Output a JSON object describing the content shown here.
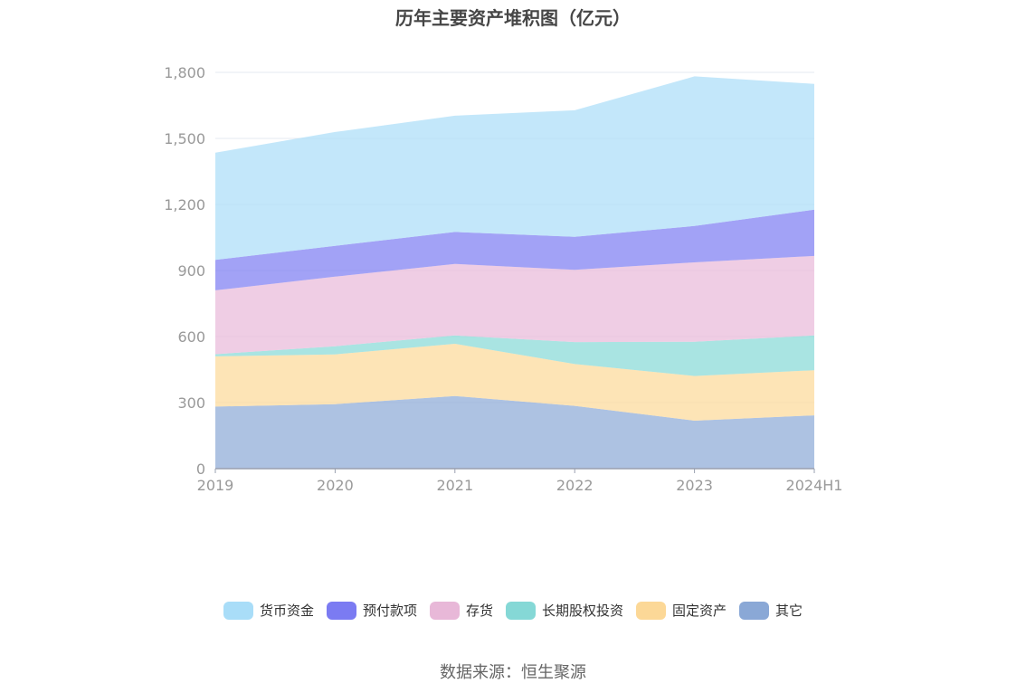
{
  "chart_data": {
    "type": "area",
    "stacked": true,
    "title": "历年主要资产堆积图（亿元）",
    "categories": [
      "2019",
      "2020",
      "2021",
      "2022",
      "2023",
      "2024H1"
    ],
    "y_ticks": [
      "0",
      "300",
      "600",
      "900",
      "1,200",
      "1,500",
      "1,800"
    ],
    "ylim": [
      0,
      1800
    ],
    "grid": true,
    "legend_position": "bottom",
    "series": [
      {
        "name": "其它",
        "color": "#8aa8d6",
        "values": [
          282,
          293,
          330,
          285,
          218,
          242
        ]
      },
      {
        "name": "固定资产",
        "color": "#fcd897",
        "values": [
          228,
          226,
          237,
          190,
          203,
          205
        ]
      },
      {
        "name": "长期股权投资",
        "color": "#85d8d6",
        "values": [
          10,
          37,
          38,
          100,
          155,
          158
        ]
      },
      {
        "name": "存货",
        "color": "#e8b8d8",
        "values": [
          290,
          316,
          325,
          328,
          361,
          361
        ]
      },
      {
        "name": "预付款项",
        "color": "#7b7bf2",
        "values": [
          138,
          140,
          145,
          150,
          165,
          210
        ]
      },
      {
        "name": "货币资金",
        "color": "#a9ddf8",
        "values": [
          487,
          517,
          528,
          575,
          680,
          572
        ]
      }
    ],
    "legend_order": [
      "货币资金",
      "预付款项",
      "存货",
      "长期股权投资",
      "固定资产",
      "其它"
    ]
  },
  "source": "数据来源：恒生聚源"
}
